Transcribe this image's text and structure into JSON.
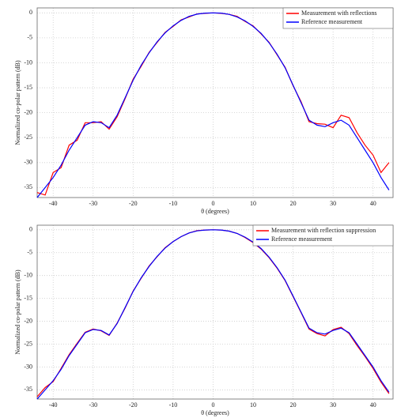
{
  "chart_data": [
    {
      "type": "line",
      "x_label": "θ (degrees)",
      "y_label": "Normalized co-polar pattern (dB)",
      "x": [
        -44,
        -42,
        -40,
        -38,
        -36,
        -34,
        -32,
        -30,
        -28,
        -26,
        -24,
        -22,
        -20,
        -18,
        -16,
        -14,
        -12,
        -10,
        -8,
        -6,
        -4,
        -2,
        0,
        2,
        4,
        6,
        8,
        10,
        12,
        14,
        16,
        18,
        20,
        22,
        24,
        26,
        28,
        30,
        32,
        34,
        36,
        38,
        40,
        42,
        44
      ],
      "series": [
        {
          "name": "Measurement with reflections",
          "color": "#ff0000",
          "values": [
            -36,
            -36.5,
            -32,
            -31,
            -26.5,
            -25.5,
            -22,
            -22,
            -21.8,
            -23.3,
            -20.8,
            -17.2,
            -13.3,
            -10.7,
            -7.9,
            -5.9,
            -3.9,
            -2.7,
            -1.4,
            -0.8,
            -0.2,
            -0.1,
            0,
            -0.1,
            -0.3,
            -0.7,
            -1.7,
            -2.6,
            -4.2,
            -5.9,
            -8.4,
            -10.9,
            -14.6,
            -17.8,
            -21.8,
            -22.2,
            -22.3,
            -23,
            -20.5,
            -21,
            -24,
            -26.5,
            -28.5,
            -32,
            -30
          ]
        },
        {
          "name": "Reference measurement",
          "color": "#0000ff",
          "values": [
            -37,
            -35,
            -33,
            -30.5,
            -27.5,
            -25,
            -22.5,
            -21.8,
            -22,
            -23,
            -20.5,
            -17,
            -13.5,
            -10.5,
            -8,
            -5.8,
            -4,
            -2.6,
            -1.5,
            -0.7,
            -0.25,
            -0.05,
            0,
            -0.05,
            -0.3,
            -0.8,
            -1.6,
            -2.7,
            -4.1,
            -6,
            -8.3,
            -11,
            -14.5,
            -18,
            -21.5,
            -22.5,
            -22.8,
            -22,
            -21.5,
            -22.5,
            -25,
            -27.5,
            -30,
            -33,
            -35.5
          ]
        }
      ],
      "xlim": [
        -44,
        45
      ],
      "ylim": [
        -37,
        1
      ],
      "xticks": [
        -40,
        -30,
        -20,
        -10,
        0,
        10,
        20,
        30,
        40
      ],
      "yticks": [
        0,
        -5,
        -10,
        -15,
        -20,
        -25,
        -30,
        -35
      ],
      "grid": true,
      "legend": "upper right"
    },
    {
      "type": "line",
      "x_label": "θ (degrees)",
      "y_label": "Normalized co-polar pattern (dB)",
      "x": [
        -44,
        -42,
        -40,
        -38,
        -36,
        -34,
        -32,
        -30,
        -28,
        -26,
        -24,
        -22,
        -20,
        -18,
        -16,
        -14,
        -12,
        -10,
        -8,
        -6,
        -4,
        -2,
        0,
        2,
        4,
        6,
        8,
        10,
        12,
        14,
        16,
        18,
        20,
        22,
        24,
        26,
        28,
        30,
        32,
        34,
        36,
        38,
        40,
        42,
        44
      ],
      "series": [
        {
          "name": "Measurement with reflection suppression",
          "color": "#ff0000",
          "values": [
            -36.5,
            -34.5,
            -33.2,
            -30.3,
            -27.3,
            -24.8,
            -22.4,
            -21.7,
            -22.1,
            -23.1,
            -20.4,
            -17.1,
            -13.4,
            -10.6,
            -7.9,
            -5.9,
            -3.9,
            -2.6,
            -1.5,
            -0.7,
            -0.2,
            -0.05,
            0,
            -0.05,
            -0.3,
            -0.8,
            -1.7,
            -2.8,
            -4.2,
            -6.1,
            -8.4,
            -11.1,
            -14.6,
            -18.1,
            -21.7,
            -22.7,
            -23.2,
            -21.8,
            -21.3,
            -22.7,
            -25.3,
            -27.7,
            -30.3,
            -33.3,
            -35.8
          ]
        },
        {
          "name": "Reference measurement",
          "color": "#0000ff",
          "values": [
            -37,
            -35,
            -33,
            -30.5,
            -27.5,
            -25,
            -22.5,
            -21.8,
            -22,
            -23,
            -20.5,
            -17,
            -13.5,
            -10.5,
            -8,
            -5.8,
            -4,
            -2.6,
            -1.5,
            -0.7,
            -0.25,
            -0.05,
            0,
            -0.05,
            -0.3,
            -0.8,
            -1.6,
            -2.7,
            -4.1,
            -6,
            -8.3,
            -11,
            -14.5,
            -18,
            -21.5,
            -22.5,
            -22.8,
            -22,
            -21.5,
            -22.5,
            -25,
            -27.5,
            -30,
            -33,
            -35.5
          ]
        }
      ],
      "xlim": [
        -44,
        45
      ],
      "ylim": [
        -37,
        1
      ],
      "xticks": [
        -40,
        -30,
        -20,
        -10,
        0,
        10,
        20,
        30,
        40
      ],
      "yticks": [
        0,
        -5,
        -10,
        -15,
        -20,
        -25,
        -30,
        -35
      ],
      "grid": true,
      "legend": "upper right"
    }
  ]
}
